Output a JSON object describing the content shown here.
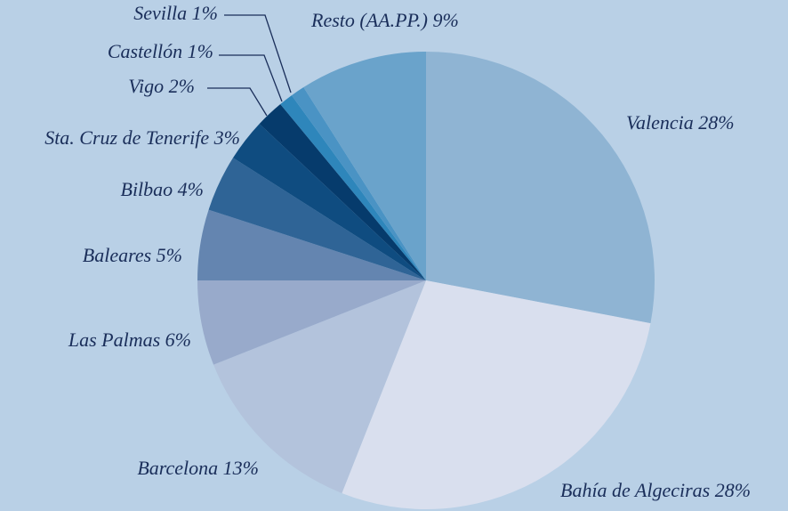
{
  "chart_data": {
    "type": "pie",
    "categories": [
      "Valencia",
      "Bahía de Algeciras",
      "Barcelona",
      "Las Palmas",
      "Baleares",
      "Bilbao",
      "Sta. Cruz de Tenerife",
      "Vigo",
      "Castellón",
      "Sevilla",
      "Resto (AA.PP.)"
    ],
    "values": [
      28,
      28,
      13,
      6,
      5,
      4,
      3,
      2,
      1,
      1,
      9
    ],
    "value_labels": [
      "28%",
      "28%",
      "13%",
      "6%",
      "5%",
      "4%",
      "3%",
      "2%",
      "1%",
      "1%",
      "9%"
    ],
    "colors": [
      "#8fb4d3",
      "#d9dfee",
      "#b3c3dc",
      "#98aacb",
      "#6485b0",
      "#2f6496",
      "#0f4c80",
      "#063b6c",
      "#2e86bb",
      "#4a93c4",
      "#6aa3cb"
    ]
  }
}
